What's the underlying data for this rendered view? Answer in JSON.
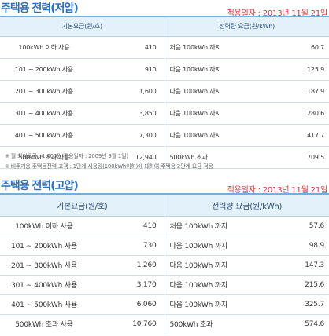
{
  "low_voltage": {
    "title": "주택용 전력(저압)",
    "date": "적용일자 : 2013년 11월 21일",
    "headers": {
      "basic": "기본요금(원/호)",
      "energy": "전력량 요금(원/kWh)"
    },
    "rows": [
      {
        "range": "100kWh 이하 사용",
        "basic": "410",
        "tier": "처음 100kWh 까지",
        "rate": "60.7"
      },
      {
        "range": "101 ~ 200kWh 사용",
        "basic": "910",
        "tier": "다음 100kWh 까지",
        "rate": "125.9"
      },
      {
        "range": "201 ~ 300kWh 사용",
        "basic": "1,600",
        "tier": "다음 100kWh 까지",
        "rate": "187.9"
      },
      {
        "range": "301 ~ 400kWh 사용",
        "basic": "3,850",
        "tier": "다음 100kWh 까지",
        "rate": "280.6"
      },
      {
        "range": "401 ~ 500kWh 사용",
        "basic": "7,300",
        "tier": "다음 100kWh 까지",
        "rate": "417.7"
      },
      {
        "range": "500kWh 초과 사용",
        "basic": "12,940",
        "tier": "500kWh 초과",
        "rate": "709.5"
      }
    ],
    "notes": [
      "※ 월 최저요금 : 1,000원(적용일자 : 2009년 9월 1일)",
      "※ 비주거용 주택용전력 고객 : 1단계 사용량(100kWh이하)에 대하여 주택용 2단계 요금 적용"
    ]
  },
  "high_voltage": {
    "title": "주택용 전력(고압)",
    "date": "적용일자 : 2013년 11월 21일",
    "headers": {
      "basic": "기본요금(원/호)",
      "energy": "전력량 요금(원/kWh)"
    },
    "rows": [
      {
        "range": "100kWh 이하 사용",
        "basic": "410",
        "tier": "처음 100kWh 까지",
        "rate": "57.6"
      },
      {
        "range": "101 ~ 200kWh 사용",
        "basic": "730",
        "tier": "다음 100kWh 까지",
        "rate": "98.9"
      },
      {
        "range": "201 ~ 300kWh 사용",
        "basic": "1,260",
        "tier": "다음 100kWh 까지",
        "rate": "147.3"
      },
      {
        "range": "301 ~ 400kWh 사용",
        "basic": "3,170",
        "tier": "다음 100kWh 까지",
        "rate": "215.6"
      },
      {
        "range": "401 ~ 500kWh 사용",
        "basic": "6,060",
        "tier": "다음 100kWh 까지",
        "rate": "325.7"
      },
      {
        "range": "500kWh 초과 사용",
        "basic": "10,760",
        "tier": "500kWh 초과",
        "rate": "574.6"
      }
    ]
  }
}
